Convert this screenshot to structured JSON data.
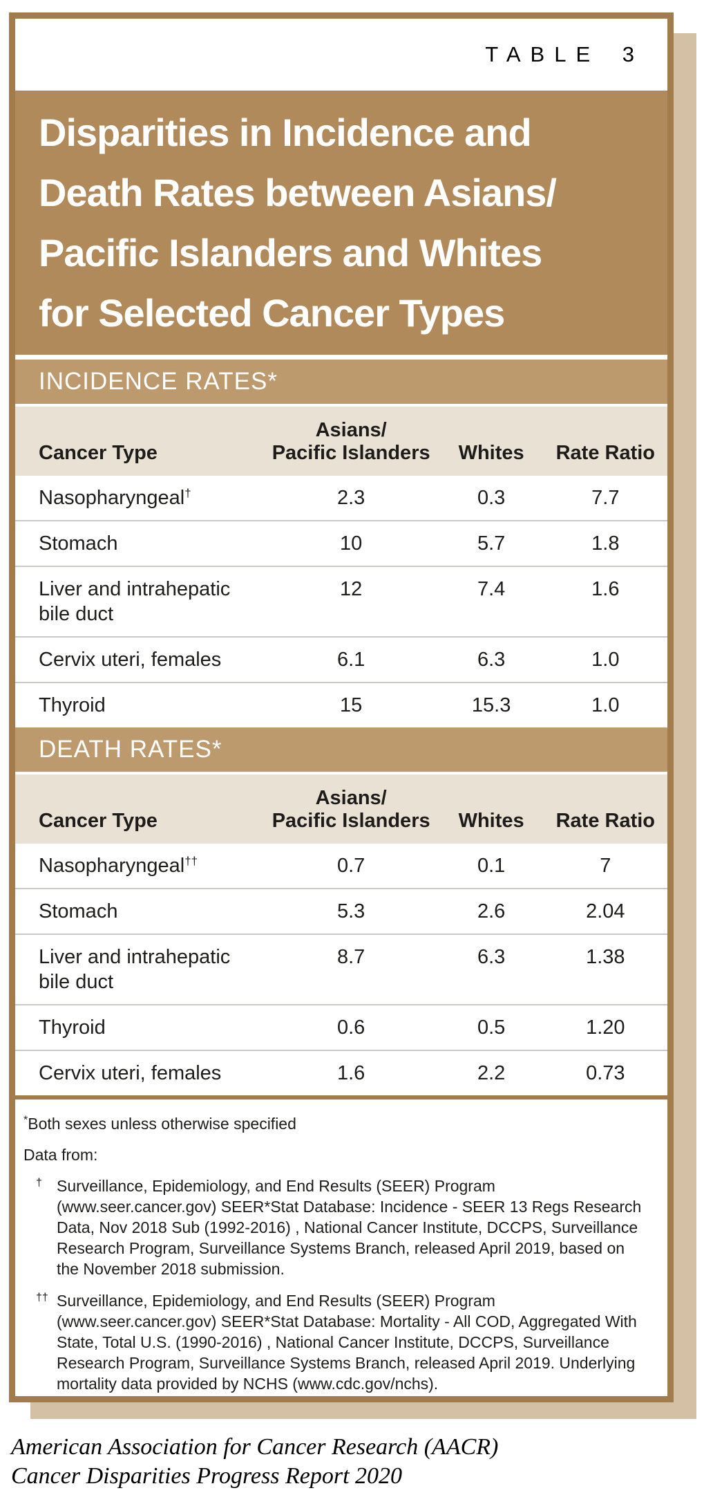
{
  "colors": {
    "frame_brown": "#a37c4c",
    "title_band": "#b08a5b",
    "section_band": "#bd9a6e",
    "header_row": "#e9e1d3",
    "shadow": "#d3c0a5",
    "divider": "#cbc9c5",
    "text": "#1d1c1a"
  },
  "table_label": "TABLE 3",
  "title_lines": [
    "Disparities in Incidence and",
    "Death Rates between Asians/",
    "Pacific Islanders and Whites",
    "for Selected Cancer Types"
  ],
  "incidence": {
    "heading": "INCIDENCE RATES*",
    "columns": {
      "cancer_type": "Cancer Type",
      "group_line1": "Asians/",
      "group_line2": "Pacific Islanders",
      "whites": "Whites",
      "rate_ratio": "Rate Ratio"
    },
    "rows": [
      {
        "name": "Nasopharyngeal",
        "marker": "†",
        "api": "2.3",
        "whites": "0.3",
        "ratio": "7.7"
      },
      {
        "name": "Stomach",
        "marker": "",
        "api": "10",
        "whites": "5.7",
        "ratio": "1.8"
      },
      {
        "name": "Liver and intrahepatic bile duct",
        "marker": "",
        "api": "12",
        "whites": "7.4",
        "ratio": "1.6"
      },
      {
        "name": "Cervix uteri, females",
        "marker": "",
        "api": "6.1",
        "whites": "6.3",
        "ratio": "1.0"
      },
      {
        "name": "Thyroid",
        "marker": "",
        "api": "15",
        "whites": "15.3",
        "ratio": "1.0"
      }
    ]
  },
  "death": {
    "heading": "DEATH RATES*",
    "columns": {
      "cancer_type": "Cancer Type",
      "group_line1": "Asians/",
      "group_line2": "Pacific Islanders",
      "whites": "Whites",
      "rate_ratio": "Rate Ratio"
    },
    "rows": [
      {
        "name": "Nasopharyngeal",
        "marker": "††",
        "api": "0.7",
        "whites": "0.1",
        "ratio": "7"
      },
      {
        "name": "Stomach",
        "marker": "",
        "api": "5.3",
        "whites": "2.6",
        "ratio": "2.04"
      },
      {
        "name": "Liver and intrahepatic bile duct",
        "marker": "",
        "api": "8.7",
        "whites": "6.3",
        "ratio": "1.38"
      },
      {
        "name": "Thyroid",
        "marker": "",
        "api": "0.6",
        "whites": "0.5",
        "ratio": "1.20"
      },
      {
        "name": "Cervix uteri, females",
        "marker": "",
        "api": "1.6",
        "whites": "2.2",
        "ratio": "0.73"
      }
    ]
  },
  "footnotes": {
    "star": {
      "marker": "*",
      "text": "Both sexes unless otherwise specified"
    },
    "data_from": "Data from:",
    "dagger": {
      "marker": "†",
      "text": "Surveillance, Epidemiology, and End Results (SEER) Program (www.seer.cancer.gov) SEER*Stat Database: Incidence - SEER 13 Regs Research Data, Nov 2018 Sub (1992-2016) , National Cancer Institute, DCCPS, Surveillance Research Program, Surveillance Systems Branch, released April 2019, based on the November 2018 submission."
    },
    "double_dagger": {
      "marker": "††",
      "text": "Surveillance, Epidemiology, and End Results (SEER) Program (www.seer.cancer.gov) SEER*Stat Database: Mortality - All COD, Aggregated With State, Total U.S. (1990-2016) , National Cancer Institute, DCCPS, Surveillance Research Program, Surveillance Systems Branch, released April 2019. Underlying mortality data provided by NCHS (www.cdc.gov/nchs)."
    }
  },
  "credit": {
    "line1": "American Association for Cancer Research (AACR)",
    "line2": "Cancer Disparities Progress Report 2020"
  }
}
